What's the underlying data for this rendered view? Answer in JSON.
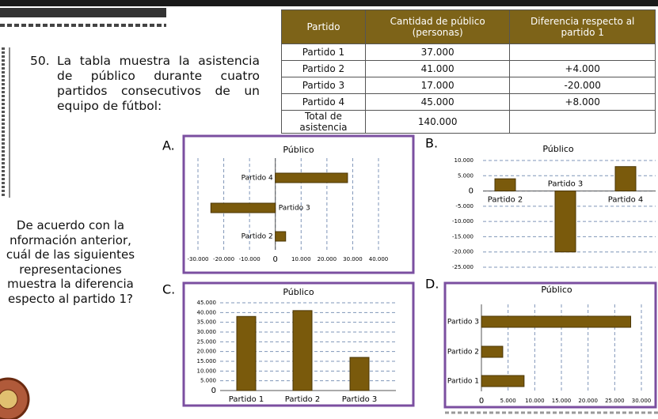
{
  "question": {
    "number": "50.",
    "lines": [
      "La tabla muestra la asistencia",
      "de público durante cuatro",
      "partidos consecutivos de un",
      "equipo de fútbol:"
    ]
  },
  "prompt": {
    "lines": [
      "De acuerdo con la",
      "nformación anterior,",
      "cuál de las siguientes",
      "representaciones",
      "muestra la diferencia",
      "especto al partido 1?"
    ]
  },
  "table": {
    "header": [
      "Partido",
      "Cantidad de público (personas)",
      "Diferencia respecto al partido 1"
    ],
    "rows": [
      [
        "Partido 1",
        "37.000"
      ],
      [
        "Partido 2",
        "41.000",
        "+4.000"
      ],
      [
        "Partido 3",
        "17.000",
        "-20.000"
      ],
      [
        "Partido 4",
        "45.000",
        "+8.000"
      ],
      [
        "Total de asistencia",
        "140.000"
      ]
    ]
  },
  "chart_data": [
    {
      "option": "A.",
      "type": "bar",
      "orientation": "horizontal",
      "title": "Público",
      "categories": [
        "Partido 4",
        "Partido 3",
        "Partido 2"
      ],
      "values": [
        28000,
        -25000,
        4000
      ],
      "xlim": [
        -30000,
        40000
      ],
      "xticks": [
        {
          "value": -30000,
          "label": "-30.000"
        },
        {
          "value": -20000,
          "label": "-20.000"
        },
        {
          "value": -10000,
          "label": "-10.000"
        },
        0,
        {
          "value": 10000,
          "label": "10.000"
        },
        {
          "value": 20000,
          "label": "20.000"
        },
        {
          "value": 30000,
          "label": "30.000"
        },
        {
          "value": 40000,
          "label": "40.000"
        }
      ],
      "color": "#7a5a0c",
      "frame": true
    },
    {
      "option": "B.",
      "type": "bar",
      "orientation": "vertical",
      "title": "Público",
      "categories": [
        "Partido 2",
        "Partido 3",
        "Partido 4"
      ],
      "values": [
        4000,
        -20000,
        8000
      ],
      "ylim": [
        -25000,
        10000
      ],
      "yticks": [
        {
          "value": 10000,
          "label": "10.000"
        },
        {
          "value": 5000,
          "label": "5.000"
        },
        0,
        {
          "value": -5000,
          "label": "-5.000"
        },
        {
          "value": -10000,
          "label": "-10.000"
        },
        {
          "value": -15000,
          "label": "-15.000"
        },
        {
          "value": -20000,
          "label": "-20.000"
        },
        {
          "value": -25000,
          "label": "-25.000"
        }
      ],
      "color": "#7a5a0c",
      "frame": false
    },
    {
      "option": "C.",
      "type": "bar",
      "orientation": "vertical",
      "title": "Público",
      "categories": [
        "Partido 1",
        "Partido 2",
        "Partido 3"
      ],
      "values": [
        38000,
        41000,
        17000
      ],
      "ylim": [
        0,
        45000
      ],
      "yticks": [
        0,
        {
          "value": 5000,
          "label": "5.000"
        },
        {
          "value": 10000,
          "label": "10.000"
        },
        {
          "value": 15000,
          "label": "15.000"
        },
        {
          "value": 20000,
          "label": "20.000"
        },
        {
          "value": 25000,
          "label": "25.000"
        },
        {
          "value": 30000,
          "label": "30.000"
        },
        {
          "value": 35000,
          "label": "35.000"
        },
        {
          "value": 40000,
          "label": "40.000"
        },
        {
          "value": 45000,
          "label": "45.000"
        }
      ],
      "color": "#7a5a0c",
      "frame": true
    },
    {
      "option": "D.",
      "type": "bar",
      "orientation": "horizontal",
      "title": "Público",
      "categories": [
        "Partido 3",
        "Partido 2",
        "Partido 1"
      ],
      "values": [
        28000,
        4000,
        8000
      ],
      "xlim": [
        0,
        30000
      ],
      "xticks": [
        0,
        {
          "value": 5000,
          "label": "5.000"
        },
        {
          "value": 10000,
          "label": "10.000"
        },
        {
          "value": 15000,
          "label": "15.000"
        },
        {
          "value": 20000,
          "label": "20.000"
        },
        {
          "value": 25000,
          "label": "25.000"
        },
        {
          "value": 30000,
          "label": "30.000"
        }
      ],
      "color": "#7a5a0c",
      "frame": true
    }
  ]
}
